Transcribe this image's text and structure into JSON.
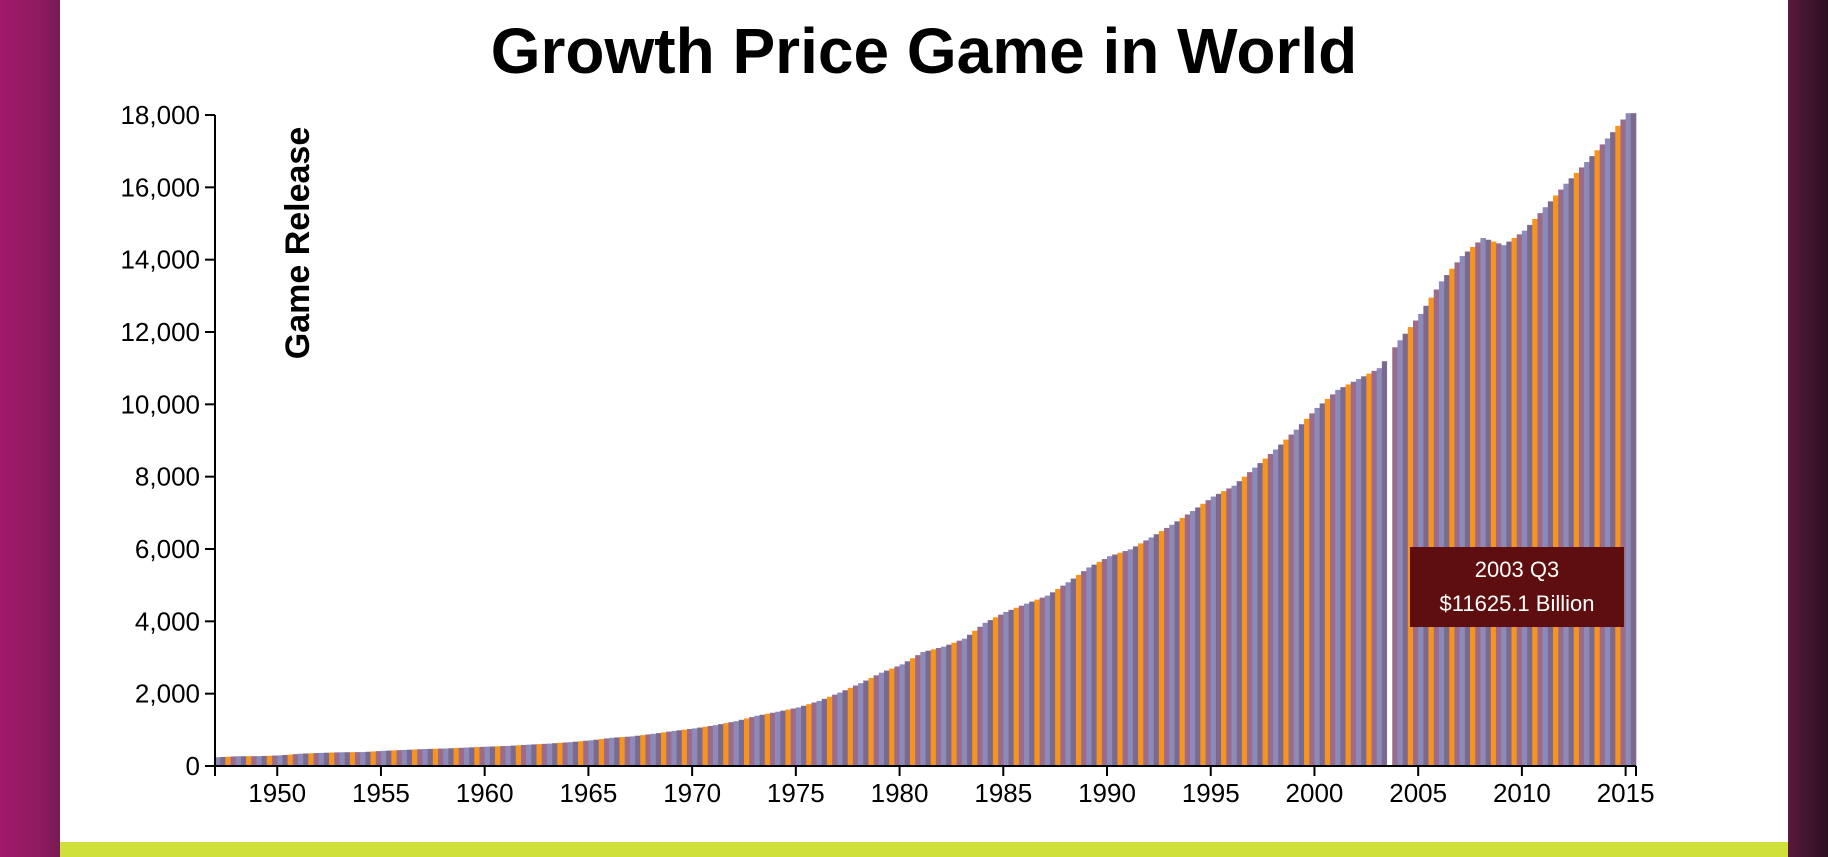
{
  "colors": {
    "background": "#7a1a55",
    "panel": "#ffffff",
    "bottom_bar": "#cfe03a",
    "tooltip_bg": "#5e0e0e",
    "bar_palette": [
      "#8c8ab8",
      "#7c6a8e",
      "#f7941d",
      "#9a6b8a"
    ]
  },
  "tooltip": {
    "line1": "2003 Q3",
    "line2": "$11625.1 Billion"
  },
  "chart_data": {
    "type": "bar",
    "title": "Growth Price Game in World",
    "xlabel": "",
    "ylabel": "Game Release",
    "x_ticks": [
      "1950",
      "1955",
      "1960",
      "1965",
      "1970",
      "1975",
      "1980",
      "1985",
      "1990",
      "1995",
      "2000",
      "2005",
      "2010",
      "2015"
    ],
    "y_ticks": [
      "0",
      "2,000",
      "4,000",
      "6,000",
      "8,000",
      "10,000",
      "12,000",
      "14,000",
      "16,000",
      "18,000"
    ],
    "xlim": [
      1947,
      2015.5
    ],
    "ylim": [
      0,
      18000
    ],
    "frequency": "quarterly",
    "highlighted_quarter": "2003 Q3",
    "series": [
      {
        "x": [
          1947,
          1948,
          1949,
          1950,
          1951,
          1952,
          1953,
          1954,
          1955,
          1956,
          1957,
          1958,
          1959,
          1960,
          1961,
          1962,
          1963,
          1964,
          1965,
          1966,
          1967,
          1968,
          1969,
          1970,
          1971,
          1972,
          1973,
          1974,
          1975,
          1976,
          1977,
          1978,
          1979,
          1980,
          1981,
          1982,
          1983,
          1984,
          1985,
          1986,
          1987,
          1988,
          1989,
          1990,
          1991,
          1992,
          1993,
          1994,
          1995,
          1996,
          1997,
          1998,
          1999,
          2000,
          2001,
          2002,
          2003,
          2004,
          2005,
          2006,
          2007,
          2008,
          2009,
          2010,
          2011,
          2012,
          2013,
          2014,
          2015
        ],
        "values": [
          243,
          270,
          272,
          294,
          340,
          363,
          380,
          385,
          420,
          445,
          470,
          485,
          510,
          535,
          555,
          590,
          620,
          660,
          710,
          780,
          820,
          890,
          970,
          1040,
          1130,
          1240,
          1390,
          1500,
          1620,
          1800,
          2030,
          2290,
          2580,
          2810,
          3150,
          3300,
          3520,
          3960,
          4260,
          4490,
          4710,
          5080,
          5490,
          5800,
          5990,
          6320,
          6670,
          7050,
          7450,
          7750,
          8250,
          8750,
          9300,
          9900,
          10400,
          10700,
          11000,
          11770,
          12500,
          13400,
          14100,
          14600,
          14400,
          14800,
          15450,
          16100,
          16700,
          17350,
          18050
        ]
      }
    ]
  }
}
